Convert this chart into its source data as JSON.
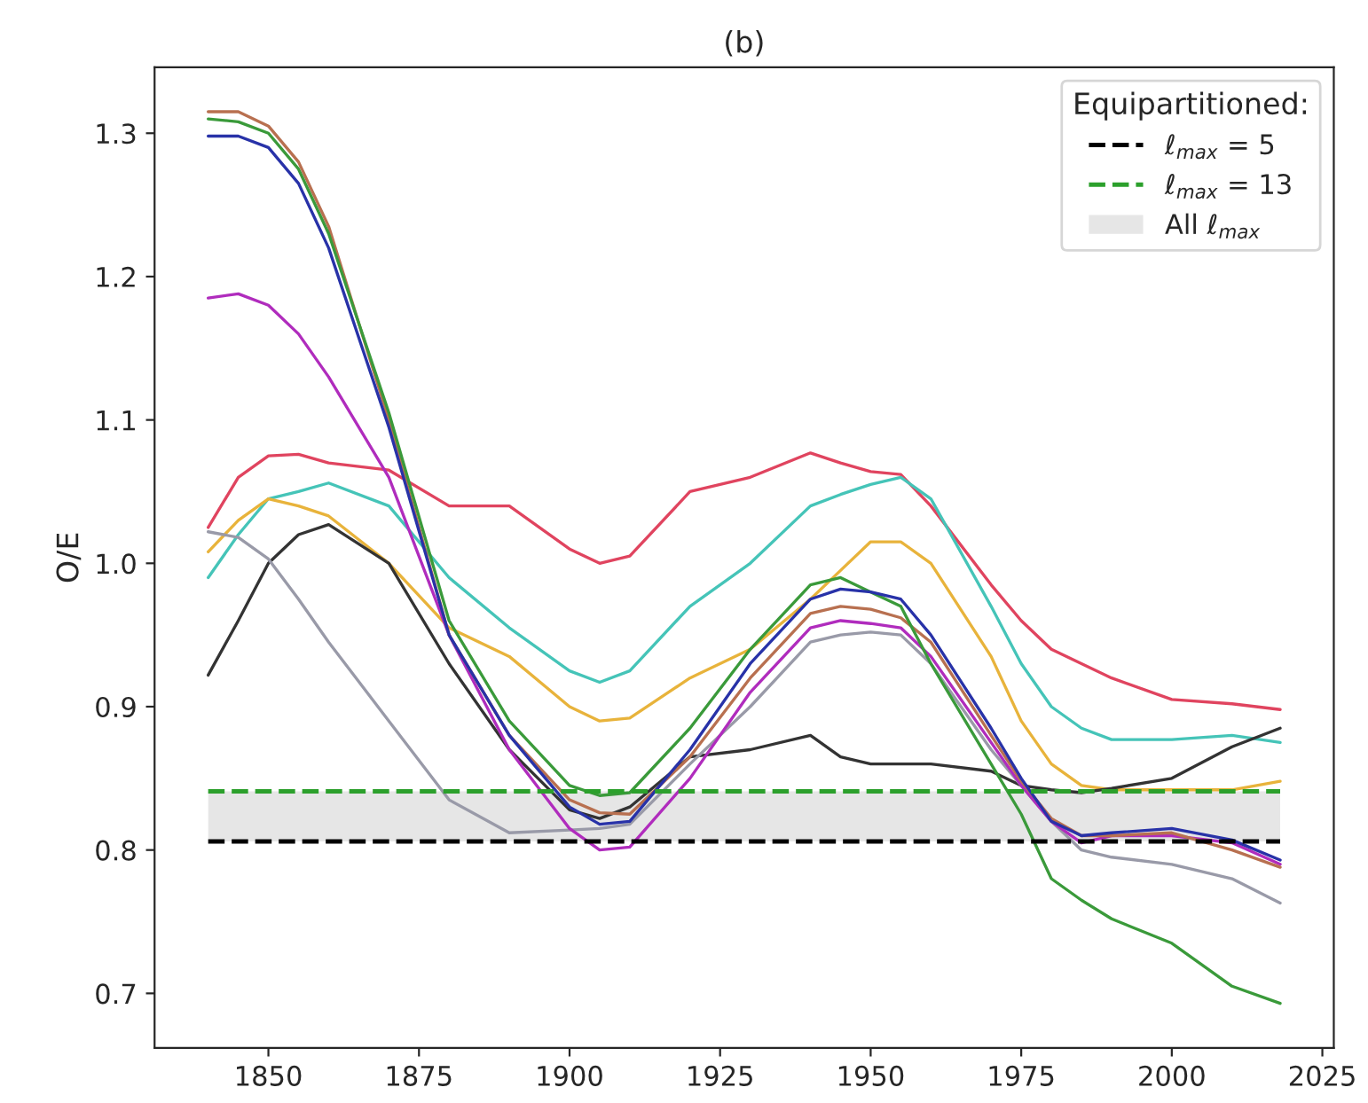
{
  "chart_data": {
    "type": "line",
    "title": "(b)",
    "ylabel": "O/E",
    "legend_title": "Equipartitioned:",
    "legend": "top right",
    "grid": false,
    "line_style": "solid",
    "marker": "none",
    "x": [
      1840,
      1845,
      1850,
      1855,
      1860,
      1870,
      1880,
      1890,
      1900,
      1905,
      1910,
      1920,
      1930,
      1940,
      1945,
      1950,
      1955,
      1960,
      1970,
      1975,
      1980,
      1985,
      1990,
      2000,
      2010,
      2018
    ],
    "xlim": [
      1831.1,
      2026.9
    ],
    "xticks": [
      1850,
      1875,
      1900,
      1925,
      1950,
      1975,
      2000,
      2025
    ],
    "ylim": [
      0.662,
      1.346
    ],
    "yticks": [
      0.7,
      0.8,
      0.9,
      {
        "value": 1.0,
        "label": "1.0"
      },
      1.1,
      1.2,
      1.3
    ],
    "series": [
      {
        "color": "#e0445f",
        "values": [
          1.025,
          1.06,
          1.075,
          1.076,
          1.07,
          1.065,
          1.04,
          1.04,
          1.01,
          1.0,
          1.005,
          1.05,
          1.06,
          1.077,
          1.07,
          1.064,
          1.062,
          1.04,
          0.985,
          0.96,
          0.94,
          0.93,
          0.92,
          0.905,
          0.902,
          0.898
        ]
      },
      {
        "color": "#45c4b8",
        "values": [
          0.99,
          1.02,
          1.045,
          1.05,
          1.056,
          1.04,
          0.99,
          0.955,
          0.925,
          0.917,
          0.925,
          0.97,
          1.0,
          1.04,
          1.048,
          1.055,
          1.06,
          1.045,
          0.97,
          0.93,
          0.9,
          0.885,
          0.877,
          0.877,
          0.88,
          0.875
        ]
      },
      {
        "color": "#e8b33b",
        "values": [
          1.008,
          1.03,
          1.045,
          1.04,
          1.033,
          1.0,
          0.955,
          0.935,
          0.9,
          0.89,
          0.892,
          0.92,
          0.94,
          0.975,
          0.995,
          1.015,
          1.015,
          1.0,
          0.935,
          0.89,
          0.86,
          0.845,
          0.842,
          0.842,
          0.842,
          0.848
        ]
      },
      {
        "color": "#333333",
        "values": [
          0.922,
          0.96,
          1.0,
          1.02,
          1.027,
          1.0,
          0.93,
          0.87,
          0.828,
          0.822,
          0.83,
          0.865,
          0.87,
          0.88,
          0.865,
          0.86,
          0.86,
          0.86,
          0.855,
          0.845,
          0.842,
          0.84,
          0.843,
          0.85,
          0.872,
          0.885
        ]
      },
      {
        "color": "#999aa8",
        "values": [
          1.022,
          1.018,
          1.003,
          0.975,
          0.945,
          0.89,
          0.835,
          0.812,
          0.814,
          0.815,
          0.818,
          0.86,
          0.9,
          0.945,
          0.95,
          0.952,
          0.95,
          0.93,
          0.87,
          0.845,
          0.82,
          0.8,
          0.795,
          0.79,
          0.78,
          0.763
        ]
      },
      {
        "color": "#b02cbd",
        "values": [
          1.185,
          1.188,
          1.18,
          1.16,
          1.13,
          1.06,
          0.95,
          0.87,
          0.815,
          0.8,
          0.802,
          0.85,
          0.91,
          0.955,
          0.96,
          0.958,
          0.955,
          0.935,
          0.875,
          0.845,
          0.82,
          0.805,
          0.81,
          0.81,
          0.805,
          0.79
        ]
      },
      {
        "color": "#b87050",
        "values": [
          1.315,
          1.315,
          1.305,
          1.28,
          1.235,
          1.1,
          0.95,
          0.88,
          0.835,
          0.826,
          0.825,
          0.865,
          0.92,
          0.965,
          0.97,
          0.968,
          0.962,
          0.945,
          0.88,
          0.848,
          0.822,
          0.81,
          0.81,
          0.812,
          0.8,
          0.788
        ]
      },
      {
        "color": "#3a9a3a",
        "values": [
          1.31,
          1.308,
          1.3,
          1.275,
          1.23,
          1.105,
          0.96,
          0.89,
          0.845,
          0.838,
          0.84,
          0.885,
          0.94,
          0.985,
          0.99,
          0.98,
          0.97,
          0.93,
          0.86,
          0.825,
          0.78,
          0.765,
          0.752,
          0.735,
          0.705,
          0.693
        ]
      },
      {
        "color": "#2832a8",
        "values": [
          1.298,
          1.298,
          1.29,
          1.265,
          1.22,
          1.095,
          0.95,
          0.88,
          0.83,
          0.818,
          0.82,
          0.87,
          0.93,
          0.975,
          0.982,
          0.98,
          0.975,
          0.95,
          0.885,
          0.85,
          0.82,
          0.81,
          0.812,
          0.815,
          0.807,
          0.793
        ]
      },
      {
        "name": "ℓ$_{max}$ = 5",
        "color": "#000000",
        "line_style": "dashed",
        "values": [
          0.806,
          0.806,
          0.806,
          0.806,
          0.806,
          0.806,
          0.806,
          0.806,
          0.806,
          0.806,
          0.806,
          0.806,
          0.806,
          0.806,
          0.806,
          0.806,
          0.806,
          0.806,
          0.806,
          0.806,
          0.806,
          0.806,
          0.806,
          0.806,
          0.806,
          0.806
        ]
      },
      {
        "name": "ℓ$_{max}$ = 13",
        "color": "#2ca02c",
        "line_style": "dashed",
        "values": [
          0.841,
          0.841,
          0.841,
          0.841,
          0.841,
          0.841,
          0.841,
          0.841,
          0.841,
          0.841,
          0.841,
          0.841,
          0.841,
          0.841,
          0.841,
          0.841,
          0.841,
          0.841,
          0.841,
          0.841,
          0.841,
          0.841,
          0.841,
          0.841,
          0.841,
          0.841
        ]
      }
    ],
    "bands": [
      {
        "axis": "y",
        "from": 0.806,
        "to": 0.841,
        "label": "All ℓ$_{max}$",
        "color": "#e6e6e6"
      }
    ]
  }
}
